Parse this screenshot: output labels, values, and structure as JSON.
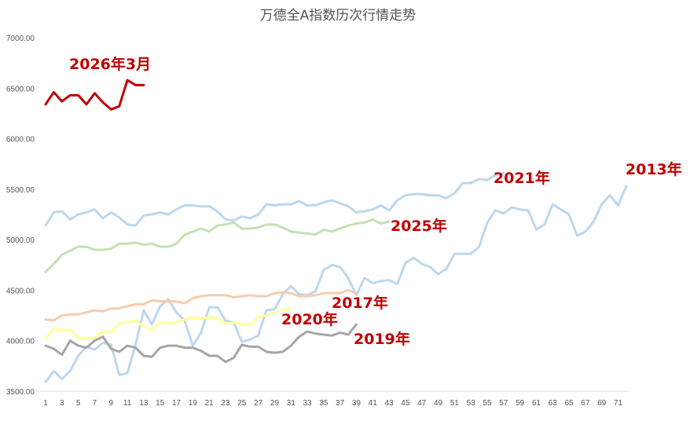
{
  "chart_data": {
    "type": "line",
    "title": "万德全A指数历次行情走势",
    "y_ticks": [
      "7000.00",
      "6500.00",
      "6000.00",
      "5500.00",
      "5000.00",
      "4500.00",
      "4000.00",
      "3500.00"
    ],
    "y_tick_values": [
      7000,
      6500,
      6000,
      5500,
      5000,
      4500,
      4000,
      3500
    ],
    "ylim": [
      3500,
      7000
    ],
    "x_ticks": [
      1,
      3,
      5,
      7,
      9,
      11,
      13,
      15,
      17,
      19,
      21,
      23,
      25,
      27,
      29,
      31,
      33,
      35,
      37,
      39,
      41,
      43,
      45,
      47,
      49,
      51,
      53,
      55,
      57,
      59,
      61,
      63,
      65,
      67,
      69,
      71
    ],
    "xlim": [
      1,
      72
    ],
    "grid": false,
    "series": [
      {
        "name": "2026年3月",
        "color": "#c00000",
        "label_color": "#c00000",
        "values": [
          6340,
          6460,
          6370,
          6430,
          6430,
          6340,
          6450,
          6360,
          6290,
          6320,
          6580,
          6530,
          6530
        ]
      },
      {
        "name": "2021年",
        "color": "#bdd7ee",
        "label_color": "#c00000",
        "values": [
          5140,
          5270,
          5280,
          5200,
          5250,
          5270,
          5300,
          5210,
          5270,
          5220,
          5150,
          5140,
          5240,
          5250,
          5270,
          5250,
          5300,
          5340,
          5340,
          5330,
          5330,
          5280,
          5200,
          5190,
          5230,
          5210,
          5250,
          5350,
          5340,
          5350,
          5350,
          5380,
          5340,
          5340,
          5370,
          5390,
          5360,
          5330,
          5270,
          5280,
          5300,
          5340,
          5290,
          5390,
          5440,
          5450,
          5450,
          5440,
          5440,
          5410,
          5460,
          5560,
          5560,
          5600,
          5590,
          5640,
          5660
        ]
      },
      {
        "name": "2013年",
        "color": "#bdd7ee",
        "label_color": "#c00000",
        "values": [
          3590,
          3700,
          3620,
          3700,
          3850,
          3940,
          3910,
          3980,
          3960,
          3660,
          3680,
          3960,
          4300,
          4160,
          4340,
          4410,
          4280,
          4200,
          3950,
          4080,
          4330,
          4330,
          4200,
          4180,
          3990,
          4010,
          4050,
          4300,
          4310,
          4460,
          4540,
          4460,
          4450,
          4490,
          4700,
          4750,
          4730,
          4620,
          4450,
          4620,
          4570,
          4590,
          4600,
          4560,
          4770,
          4820,
          4760,
          4730,
          4660,
          4710,
          4860,
          4860,
          4860,
          4930,
          5170,
          5290,
          5260,
          5320,
          5300,
          5290,
          5100,
          5150,
          5350,
          5300,
          5250,
          5040,
          5080,
          5180,
          5350,
          5440,
          5340,
          5530
        ]
      },
      {
        "name": "2025年",
        "color": "#c5e0b4",
        "label_color": "#c00000",
        "values": [
          4680,
          4760,
          4850,
          4890,
          4930,
          4930,
          4900,
          4900,
          4910,
          4960,
          4960,
          4970,
          4950,
          4960,
          4930,
          4930,
          4960,
          5050,
          5080,
          5110,
          5080,
          5140,
          5150,
          5170,
          5110,
          5110,
          5120,
          5150,
          5150,
          5120,
          5080,
          5070,
          5060,
          5050,
          5100,
          5080,
          5110,
          5140,
          5160,
          5170,
          5200,
          5160,
          5180
        ]
      },
      {
        "name": "2017年",
        "color": "#f8cbad",
        "label_color": "#c00000",
        "values": [
          4210,
          4200,
          4250,
          4260,
          4260,
          4280,
          4300,
          4290,
          4320,
          4320,
          4340,
          4360,
          4360,
          4400,
          4390,
          4390,
          4390,
          4370,
          4420,
          4440,
          4450,
          4450,
          4450,
          4430,
          4440,
          4450,
          4440,
          4440,
          4470,
          4480,
          4470,
          4440,
          4440,
          4450,
          4470,
          4470,
          4470,
          4500,
          4470
        ]
      },
      {
        "name": "2020年",
        "color": "#ffff99",
        "label_color": "#c00000",
        "values": [
          4020,
          4120,
          4100,
          4110,
          4030,
          4020,
          4030,
          4090,
          4080,
          4170,
          4180,
          4200,
          4140,
          4110,
          4180,
          4170,
          4180,
          4210,
          4230,
          4220,
          4230,
          4220,
          4170,
          4180,
          4160,
          4160,
          4230,
          4250,
          4280,
          4300,
          4320
        ]
      },
      {
        "name": "2019年",
        "color": "#a6a6a6",
        "label_color": "#c00000",
        "values": [
          3950,
          3920,
          3860,
          4000,
          3950,
          3930,
          4000,
          4040,
          3920,
          3890,
          3950,
          3930,
          3850,
          3840,
          3930,
          3950,
          3950,
          3930,
          3930,
          3900,
          3850,
          3850,
          3790,
          3830,
          3960,
          3940,
          3940,
          3890,
          3880,
          3890,
          3950,
          4040,
          4090,
          4070,
          4060,
          4050,
          4080,
          4060,
          4160
        ]
      }
    ]
  }
}
